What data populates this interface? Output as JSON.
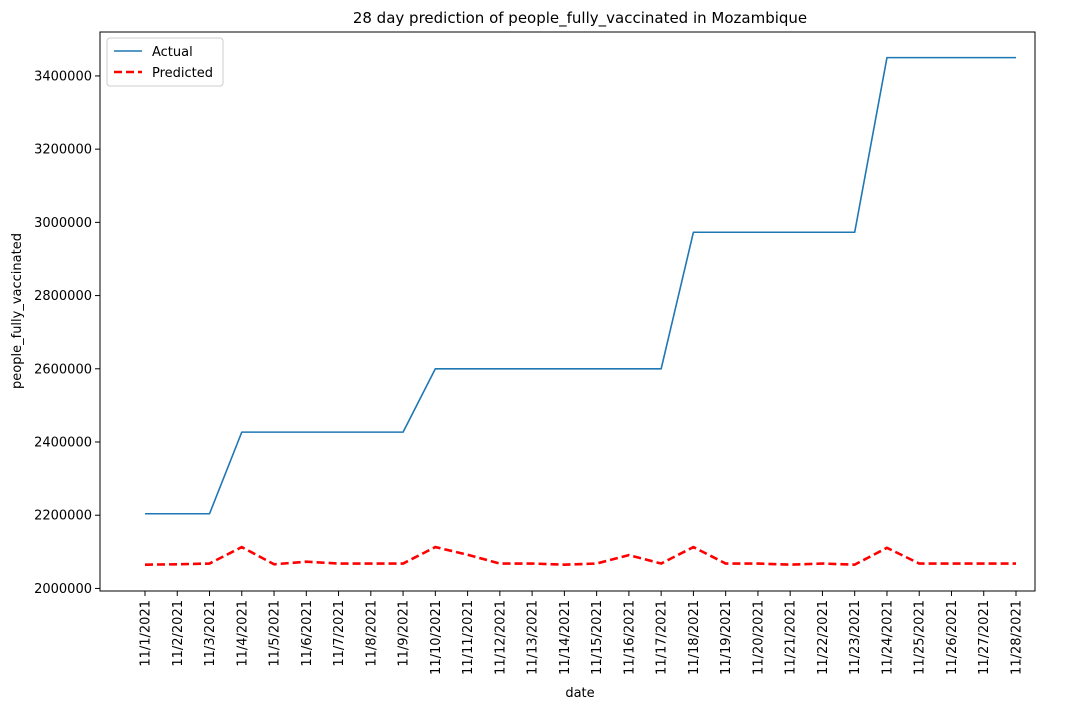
{
  "chart_data": {
    "type": "line",
    "title": "28 day prediction of people_fully_vaccinated in Mozambique",
    "xlabel": "date",
    "ylabel": "people_fully_vaccinated",
    "categories": [
      "11/1/2021",
      "11/2/2021",
      "11/3/2021",
      "11/4/2021",
      "11/5/2021",
      "11/6/2021",
      "11/7/2021",
      "11/8/2021",
      "11/9/2021",
      "11/10/2021",
      "11/11/2021",
      "11/12/2021",
      "11/13/2021",
      "11/14/2021",
      "11/15/2021",
      "11/16/2021",
      "11/17/2021",
      "11/18/2021",
      "11/19/2021",
      "11/20/2021",
      "11/21/2021",
      "11/22/2021",
      "11/23/2021",
      "11/24/2021",
      "11/25/2021",
      "11/26/2021",
      "11/27/2021",
      "11/28/2021"
    ],
    "yticks": [
      2000000,
      2200000,
      2400000,
      2600000,
      2800000,
      3000000,
      3200000,
      3400000
    ],
    "ylim": [
      1993000,
      3520000
    ],
    "legend_position": "upper-left",
    "series": [
      {
        "name": "Actual",
        "color": "#1f77b4",
        "style": "solid",
        "values": [
          2204000,
          2204000,
          2204000,
          2427000,
          2427000,
          2427000,
          2427000,
          2427000,
          2427000,
          2600000,
          2600000,
          2600000,
          2600000,
          2600000,
          2600000,
          2600000,
          2600000,
          2973000,
          2973000,
          2973000,
          2973000,
          2973000,
          2973000,
          3450000,
          3450000,
          3450000,
          3450000,
          3450000
        ]
      },
      {
        "name": "Predicted",
        "color": "#ff0000",
        "style": "dashed",
        "values": [
          2065000,
          2066000,
          2068000,
          2113000,
          2066000,
          2073000,
          2068000,
          2068000,
          2068000,
          2113000,
          2092000,
          2068000,
          2068000,
          2065000,
          2068000,
          2091000,
          2068000,
          2113000,
          2068000,
          2068000,
          2065000,
          2068000,
          2065000,
          2111000,
          2068000,
          2068000,
          2068000,
          2068000
        ]
      }
    ]
  }
}
